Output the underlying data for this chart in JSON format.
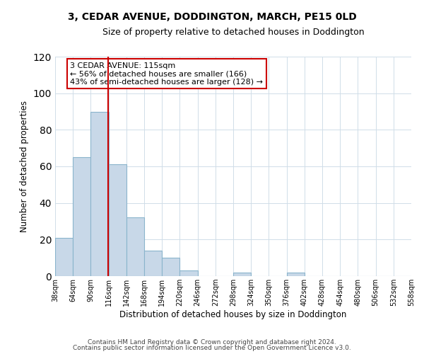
{
  "title": "3, CEDAR AVENUE, DODDINGTON, MARCH, PE15 0LD",
  "subtitle": "Size of property relative to detached houses in Doddington",
  "xlabel": "Distribution of detached houses by size in Doddington",
  "ylabel": "Number of detached properties",
  "bar_edges": [
    38,
    64,
    90,
    116,
    142,
    168,
    194,
    220,
    246,
    272,
    298,
    324,
    350,
    376,
    402,
    428,
    454,
    480,
    506,
    532,
    558
  ],
  "bar_heights": [
    21,
    65,
    90,
    61,
    32,
    14,
    10,
    3,
    0,
    0,
    2,
    0,
    0,
    2,
    0,
    0,
    0,
    0,
    0,
    0
  ],
  "bar_color": "#c8d8e8",
  "bar_edgecolor": "#8ab4cc",
  "property_line_x": 115,
  "property_line_color": "#cc0000",
  "annotation_text": "3 CEDAR AVENUE: 115sqm\n← 56% of detached houses are smaller (166)\n43% of semi-detached houses are larger (128) →",
  "annotation_box_edgecolor": "#cc0000",
  "annotation_box_facecolor": "#ffffff",
  "ylim": [
    0,
    120
  ],
  "yticks": [
    0,
    20,
    40,
    60,
    80,
    100,
    120
  ],
  "tick_labels": [
    "38sqm",
    "64sqm",
    "90sqm",
    "116sqm",
    "142sqm",
    "168sqm",
    "194sqm",
    "220sqm",
    "246sqm",
    "272sqm",
    "298sqm",
    "324sqm",
    "350sqm",
    "376sqm",
    "402sqm",
    "428sqm",
    "454sqm",
    "480sqm",
    "506sqm",
    "532sqm",
    "558sqm"
  ],
  "footer_line1": "Contains HM Land Registry data © Crown copyright and database right 2024.",
  "footer_line2": "Contains public sector information licensed under the Open Government Licence v3.0.",
  "background_color": "#ffffff",
  "grid_color": "#d0dde8"
}
